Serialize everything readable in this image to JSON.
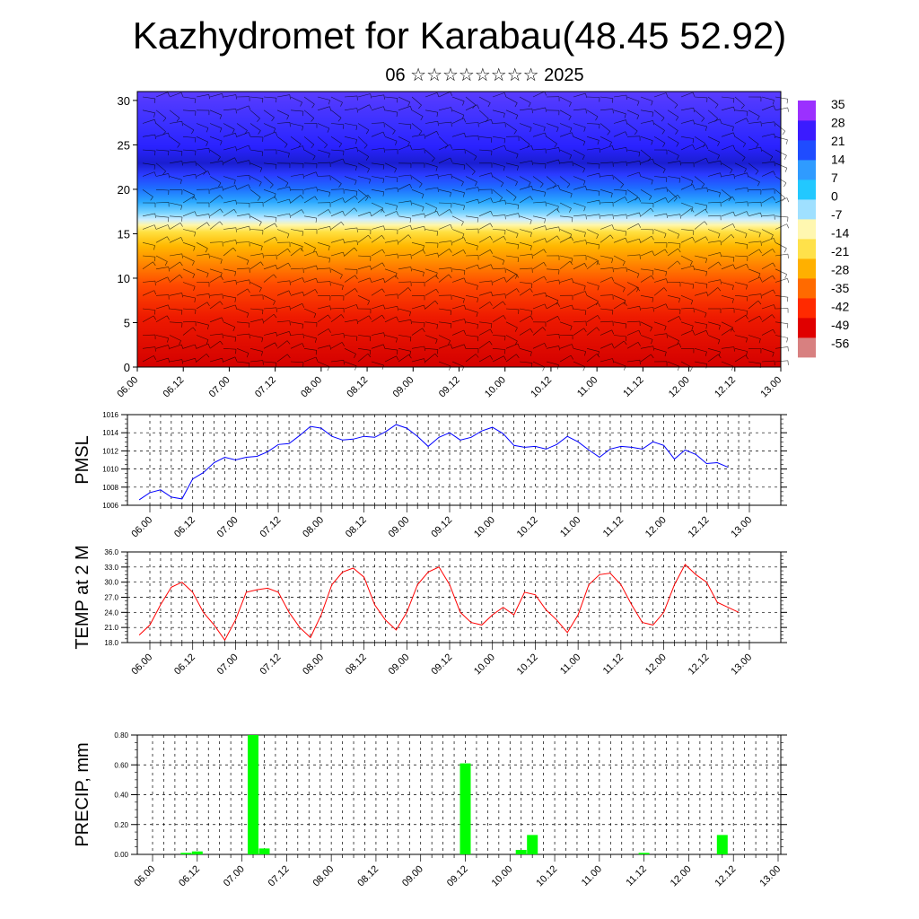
{
  "title": "Kazhydromet for Karabau(48.45 52.92)",
  "subtitle": "06 ☆☆☆☆☆☆☆☆ 2025",
  "colors": {
    "pmsl": "#0000ff",
    "temp": "#ff0000",
    "precip": "#00ff00"
  },
  "chart_data": [
    {
      "type": "heatmap",
      "name": "upper-air-section",
      "y_ticks": [
        "0",
        "5",
        "10",
        "15",
        "20",
        "25",
        "30"
      ],
      "ylim": [
        0,
        31
      ],
      "x_ticks": [
        "06.00",
        "06.12",
        "07.00",
        "07.12",
        "08.00",
        "08.12",
        "09.00",
        "09.12",
        "10.00",
        "10.12",
        "11.00",
        "11.12",
        "12.00",
        "12.12",
        "13.00"
      ],
      "colorbar_labels": [
        "35",
        "28",
        "21",
        "14",
        "7",
        "0",
        "-7",
        "-14",
        "-21",
        "-28",
        "-35",
        "-42",
        "-49",
        "-56"
      ],
      "colormap": [
        "#9b30ff",
        "#3b1bff",
        "#1f4cff",
        "#2f9bff",
        "#22c8ff",
        "#9fe0ff",
        "#fff7b0",
        "#ffe14a",
        "#ffb000",
        "#ff6a00",
        "#ff2a00",
        "#e00000",
        "#d88080"
      ],
      "notes": "temperature shading with wind barbs"
    },
    {
      "type": "line",
      "name": "pmsl",
      "ylabel": "PMSL",
      "ylim": [
        1006,
        1016
      ],
      "y_ticks": [
        "1006",
        "1008",
        "1010",
        "1012",
        "1014",
        "1016"
      ],
      "x_ticks": [
        "06.00",
        "06.12",
        "07.00",
        "07.12",
        "08.00",
        "08.12",
        "09.00",
        "09.12",
        "10.00",
        "10.12",
        "11.00",
        "11.12",
        "12.00",
        "12.12",
        "13.00"
      ],
      "step_hours": 3,
      "series": [
        {
          "values": [
            1006.6,
            1007.4,
            1007.7,
            1006.9,
            1006.7,
            1008.9,
            1009.6,
            1010.7,
            1011.3,
            1011.0,
            1011.3,
            1011.4,
            1011.9,
            1012.7,
            1012.8,
            1013.7,
            1014.7,
            1014.5,
            1013.6,
            1013.2,
            1013.3,
            1013.6,
            1013.5,
            1014.1,
            1014.9,
            1014.5,
            1013.6,
            1012.5,
            1013.5,
            1014.0,
            1013.2,
            1013.5,
            1014.2,
            1014.6,
            1013.9,
            1012.6,
            1012.4,
            1012.5,
            1012.2,
            1012.7,
            1013.6,
            1013.0,
            1012.1,
            1011.3,
            1012.2,
            1012.5,
            1012.4,
            1012.2,
            1013.0,
            1012.6,
            1011.1,
            1012.1,
            1011.6,
            1010.6,
            1010.7,
            1010.2
          ]
        }
      ]
    },
    {
      "type": "line",
      "name": "temp-2m",
      "ylabel": "TEMP at 2 M",
      "ylim": [
        18,
        36
      ],
      "y_ticks": [
        "18.0",
        "21.0",
        "24.0",
        "27.0",
        "30.0",
        "33.0",
        "36.0"
      ],
      "x_ticks": [
        "06.00",
        "06.12",
        "07.00",
        "07.12",
        "08.00",
        "08.12",
        "09.00",
        "09.12",
        "10.00",
        "10.12",
        "11.00",
        "11.12",
        "12.00",
        "12.12",
        "13.00"
      ],
      "step_hours": 3,
      "series": [
        {
          "values": [
            19.5,
            21.5,
            25.5,
            29.0,
            30.0,
            28.0,
            24.0,
            21.5,
            18.5,
            22.5,
            28.0,
            28.5,
            28.8,
            28.0,
            24.0,
            21.0,
            19.0,
            23.5,
            29.5,
            32.0,
            32.8,
            31.0,
            25.5,
            22.5,
            20.5,
            24.0,
            29.5,
            32.0,
            33.0,
            29.5,
            24.0,
            22.0,
            21.5,
            23.5,
            25.0,
            23.5,
            28.0,
            27.5,
            24.5,
            22.5,
            20.0,
            23.5,
            29.5,
            31.5,
            31.8,
            29.5,
            25.5,
            22.0,
            21.5,
            24.0,
            29.5,
            33.5,
            31.5,
            30.0,
            26.0,
            25.0,
            24.0
          ]
        }
      ]
    },
    {
      "type": "bar",
      "name": "precip",
      "ylabel": "PRECIP, mm",
      "ylim": [
        0,
        0.8
      ],
      "y_ticks": [
        "0.00",
        "0.20",
        "0.40",
        "0.60",
        "0.80"
      ],
      "x_ticks": [
        "06.00",
        "06.12",
        "07.00",
        "07.12",
        "08.00",
        "08.12",
        "09.00",
        "09.12",
        "10.00",
        "10.12",
        "11.00",
        "11.12",
        "12.00",
        "12.12",
        "13.00"
      ],
      "step_hours": 3,
      "values": [
        0,
        0,
        0,
        0,
        0.01,
        0.02,
        0,
        0,
        0,
        0,
        0.8,
        0.04,
        0,
        0,
        0,
        0,
        0,
        0,
        0,
        0,
        0,
        0,
        0,
        0,
        0,
        0,
        0,
        0,
        0,
        0.61,
        0,
        0,
        0,
        0,
        0.03,
        0.13,
        0,
        0,
        0,
        0,
        0,
        0,
        0,
        0,
        0,
        0.01,
        0,
        0,
        0,
        0,
        0,
        0,
        0.13,
        0,
        0,
        0,
        0
      ]
    }
  ]
}
